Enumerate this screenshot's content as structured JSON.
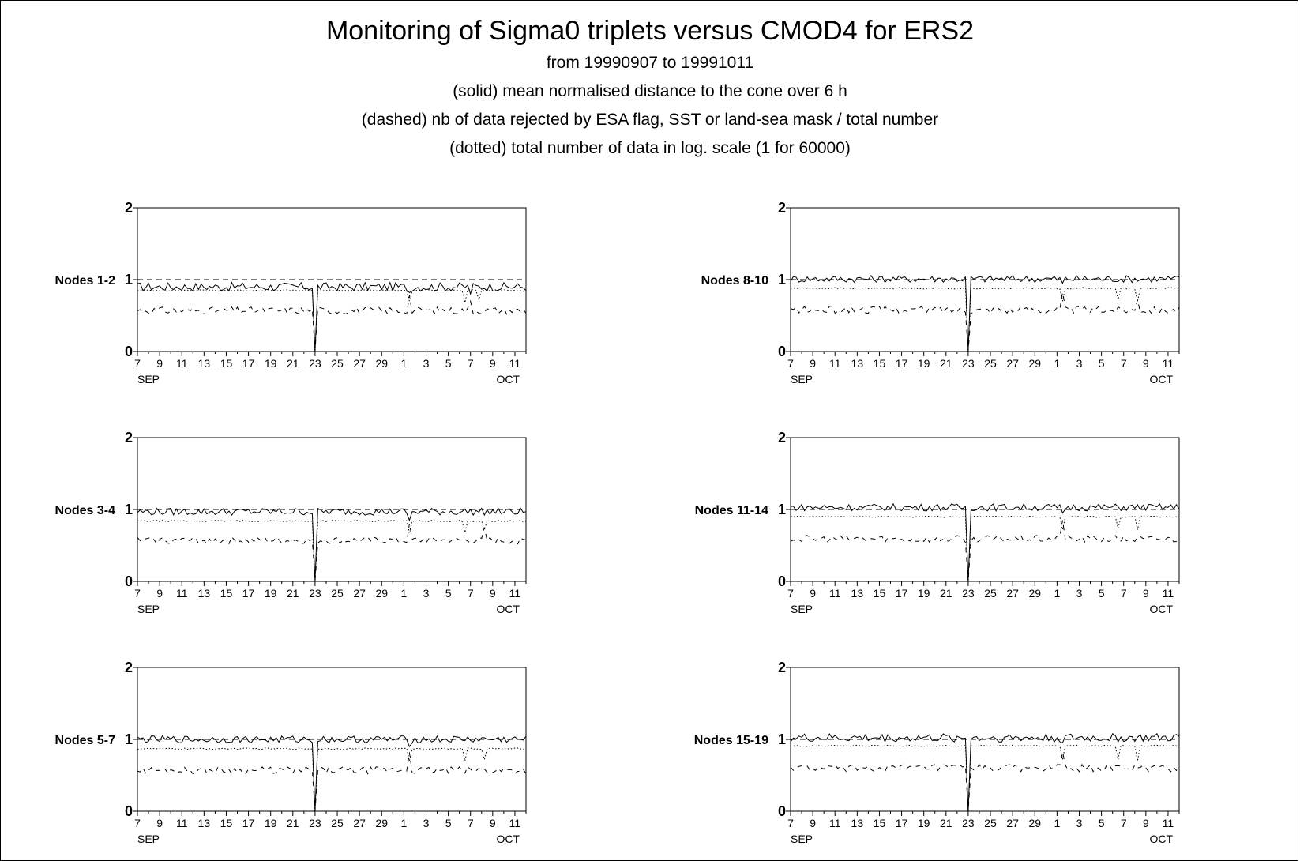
{
  "header": {
    "title": "Monitoring of Sigma0 triplets versus CMOD4 for ERS2",
    "subtitle_1": "from 19990907 to 19991011",
    "subtitle_2": "(solid) mean normalised distance to the cone over 6 h",
    "subtitle_3": "(dashed) nb of data rejected by ESA flag, SST or land-sea mask / total number",
    "subtitle_4": "(dotted) total number of data in log. scale (1 for 60000)"
  },
  "chart_data": [
    {
      "type": "line",
      "panel_label": "Nodes  1-2",
      "x_unit": "day index from 7 SEP 1999",
      "xlim": [
        0,
        35
      ],
      "ylim": [
        0,
        2
      ],
      "y_ticks": [
        0,
        1,
        2
      ],
      "x_tick_labels": [
        "7",
        "9",
        "11",
        "13",
        "15",
        "17",
        "19",
        "21",
        "23",
        "25",
        "27",
        "29",
        "1",
        "3",
        "5",
        "7",
        "9",
        "11"
      ],
      "x_month_labels": [
        "SEP",
        "OCT"
      ],
      "reference_line": 1,
      "grid": false,
      "series": [
        {
          "style": "solid",
          "base": 0.9,
          "spread": 0.06,
          "drops": [
            {
              "x": 16,
              "y": 0.0
            },
            {
              "x": 24.6,
              "y": 0.82
            },
            {
              "x": 29.9,
              "y": 0.8
            }
          ]
        },
        {
          "style": "dotted",
          "base": 0.85,
          "spread": 0.01,
          "drops": [
            {
              "x": 16,
              "y": 0.0
            },
            {
              "x": 24.6,
              "y": 0.7
            },
            {
              "x": 29.6,
              "y": 0.68
            },
            {
              "x": 30.8,
              "y": 0.72
            }
          ]
        },
        {
          "style": "dashed",
          "base": 0.57,
          "spread": 0.05,
          "drops": [
            {
              "x": 16,
              "y": 0.0
            },
            {
              "x": 24.6,
              "y": 0.78
            },
            {
              "x": 29.9,
              "y": 0.7
            }
          ]
        }
      ]
    },
    {
      "type": "line",
      "panel_label": "Nodes  8-10",
      "x_unit": "day index from 7 SEP 1999",
      "xlim": [
        0,
        35
      ],
      "ylim": [
        0,
        2
      ],
      "y_ticks": [
        0,
        1,
        2
      ],
      "x_tick_labels": [
        "7",
        "9",
        "11",
        "13",
        "15",
        "17",
        "19",
        "21",
        "23",
        "25",
        "27",
        "29",
        "1",
        "3",
        "5",
        "7",
        "9",
        "11"
      ],
      "x_month_labels": [
        "SEP",
        "OCT"
      ],
      "reference_line": 1,
      "grid": false,
      "series": [
        {
          "style": "solid",
          "base": 1.01,
          "spread": 0.05,
          "drops": [
            {
              "x": 16,
              "y": 0.0
            },
            {
              "x": 24.6,
              "y": 0.95
            }
          ]
        },
        {
          "style": "dotted",
          "base": 0.88,
          "spread": 0.01,
          "drops": [
            {
              "x": 16,
              "y": 0.0
            },
            {
              "x": 24.6,
              "y": 0.7
            },
            {
              "x": 29.6,
              "y": 0.72
            },
            {
              "x": 31.2,
              "y": 0.7
            }
          ]
        },
        {
          "style": "dashed",
          "base": 0.58,
          "spread": 0.05,
          "drops": [
            {
              "x": 16,
              "y": 0.0
            },
            {
              "x": 24.6,
              "y": 0.82
            },
            {
              "x": 31.2,
              "y": 0.72
            }
          ]
        }
      ]
    },
    {
      "type": "line",
      "panel_label": "Nodes  3-4",
      "x_unit": "day index from 7 SEP 1999",
      "xlim": [
        0,
        35
      ],
      "ylim": [
        0,
        2
      ],
      "y_ticks": [
        0,
        1,
        2
      ],
      "x_tick_labels": [
        "7",
        "9",
        "11",
        "13",
        "15",
        "17",
        "19",
        "21",
        "23",
        "25",
        "27",
        "29",
        "1",
        "3",
        "5",
        "7",
        "9",
        "11"
      ],
      "x_month_labels": [
        "SEP",
        "OCT"
      ],
      "reference_line": 1,
      "grid": false,
      "series": [
        {
          "style": "solid",
          "base": 0.97,
          "spread": 0.05,
          "drops": [
            {
              "x": 16,
              "y": 0.0
            },
            {
              "x": 24.6,
              "y": 0.85
            }
          ]
        },
        {
          "style": "dotted",
          "base": 0.84,
          "spread": 0.01,
          "drops": [
            {
              "x": 16,
              "y": 0.0
            },
            {
              "x": 24.6,
              "y": 0.68
            },
            {
              "x": 29.6,
              "y": 0.68
            },
            {
              "x": 31.2,
              "y": 0.72
            }
          ]
        },
        {
          "style": "dashed",
          "base": 0.57,
          "spread": 0.05,
          "drops": [
            {
              "x": 16,
              "y": 0.0
            },
            {
              "x": 24.6,
              "y": 0.8
            },
            {
              "x": 31.2,
              "y": 0.75
            }
          ]
        }
      ]
    },
    {
      "type": "line",
      "panel_label": "Nodes 11-14",
      "x_unit": "day index from 7 SEP 1999",
      "xlim": [
        0,
        35
      ],
      "ylim": [
        0,
        2
      ],
      "y_ticks": [
        0,
        1,
        2
      ],
      "x_tick_labels": [
        "7",
        "9",
        "11",
        "13",
        "15",
        "17",
        "19",
        "21",
        "23",
        "25",
        "27",
        "29",
        "1",
        "3",
        "5",
        "7",
        "9",
        "11"
      ],
      "x_month_labels": [
        "SEP",
        "OCT"
      ],
      "reference_line": 1,
      "grid": false,
      "series": [
        {
          "style": "solid",
          "base": 1.03,
          "spread": 0.05,
          "drops": [
            {
              "x": 16,
              "y": 0.0
            },
            {
              "x": 24.6,
              "y": 0.95
            }
          ]
        },
        {
          "style": "dotted",
          "base": 0.9,
          "spread": 0.01,
          "drops": [
            {
              "x": 16,
              "y": 0.0
            },
            {
              "x": 24.6,
              "y": 0.72
            },
            {
              "x": 29.6,
              "y": 0.74
            },
            {
              "x": 31.2,
              "y": 0.72
            }
          ]
        },
        {
          "style": "dashed",
          "base": 0.59,
          "spread": 0.05,
          "drops": [
            {
              "x": 16,
              "y": 0.0
            },
            {
              "x": 24.6,
              "y": 0.85
            }
          ]
        }
      ]
    },
    {
      "type": "line",
      "panel_label": "Nodes  5-7",
      "x_unit": "day index from 7 SEP 1999",
      "xlim": [
        0,
        35
      ],
      "ylim": [
        0,
        2
      ],
      "y_ticks": [
        0,
        1,
        2
      ],
      "x_tick_labels": [
        "7",
        "9",
        "11",
        "13",
        "15",
        "17",
        "19",
        "21",
        "23",
        "25",
        "27",
        "29",
        "1",
        "3",
        "5",
        "7",
        "9",
        "11"
      ],
      "x_month_labels": [
        "SEP",
        "OCT"
      ],
      "reference_line": 1,
      "grid": false,
      "series": [
        {
          "style": "solid",
          "base": 1.0,
          "spread": 0.05,
          "drops": [
            {
              "x": 16,
              "y": 0.0
            },
            {
              "x": 24.6,
              "y": 0.9
            }
          ]
        },
        {
          "style": "dotted",
          "base": 0.87,
          "spread": 0.01,
          "drops": [
            {
              "x": 16,
              "y": 0.0
            },
            {
              "x": 24.6,
              "y": 0.7
            },
            {
              "x": 29.6,
              "y": 0.7
            },
            {
              "x": 31.2,
              "y": 0.72
            }
          ]
        },
        {
          "style": "dashed",
          "base": 0.57,
          "spread": 0.05,
          "drops": [
            {
              "x": 16,
              "y": 0.0
            },
            {
              "x": 24.6,
              "y": 0.82
            }
          ]
        }
      ]
    },
    {
      "type": "line",
      "panel_label": "Nodes 15-19",
      "x_unit": "day index from 7 SEP 1999",
      "xlim": [
        0,
        35
      ],
      "ylim": [
        0,
        2
      ],
      "y_ticks": [
        0,
        1,
        2
      ],
      "x_tick_labels": [
        "7",
        "9",
        "11",
        "13",
        "15",
        "17",
        "19",
        "21",
        "23",
        "25",
        "27",
        "29",
        "1",
        "3",
        "5",
        "7",
        "9",
        "11"
      ],
      "x_month_labels": [
        "SEP",
        "OCT"
      ],
      "reference_line": 1,
      "grid": false,
      "series": [
        {
          "style": "solid",
          "base": 1.02,
          "spread": 0.06,
          "drops": [
            {
              "x": 16,
              "y": 0.0
            },
            {
              "x": 24.6,
              "y": 0.95
            }
          ]
        },
        {
          "style": "dotted",
          "base": 0.91,
          "spread": 0.01,
          "drops": [
            {
              "x": 16,
              "y": 0.0
            },
            {
              "x": 24.6,
              "y": 0.72
            },
            {
              "x": 29.6,
              "y": 0.72
            },
            {
              "x": 31.2,
              "y": 0.7
            }
          ]
        },
        {
          "style": "dashed",
          "base": 0.6,
          "spread": 0.05,
          "drops": [
            {
              "x": 16,
              "y": 0.0
            },
            {
              "x": 24.6,
              "y": 0.82
            }
          ]
        }
      ]
    }
  ]
}
